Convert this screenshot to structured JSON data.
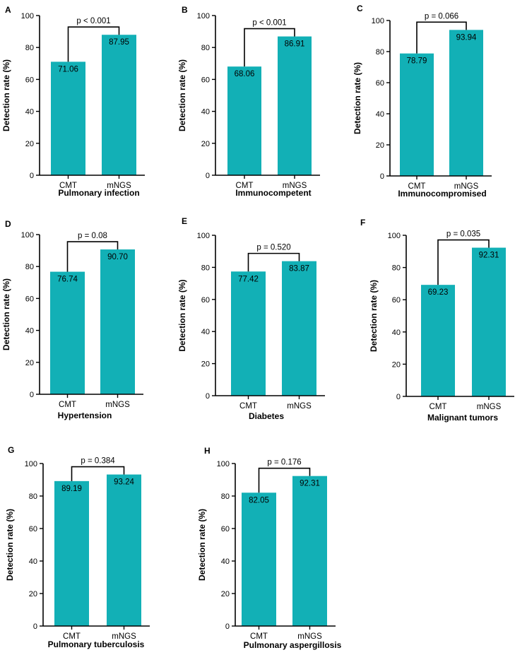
{
  "chart_data": [
    {
      "panel": "A",
      "type": "bar",
      "categories": [
        "CMT",
        "mNGS"
      ],
      "values": [
        71.06,
        87.95
      ],
      "value_labels": [
        "71.06",
        "87.95"
      ],
      "p_value": "p < 0.001",
      "xlabel": "Pulmonary infection",
      "ylabel": "Detection rate (%)",
      "ylim": [
        0,
        100
      ],
      "yticks": [
        "0",
        "20",
        "40",
        "60",
        "80",
        "100"
      ],
      "bar_color": "#12b0b6"
    },
    {
      "panel": "B",
      "type": "bar",
      "categories": [
        "CMT",
        "mNGS"
      ],
      "values": [
        68.06,
        86.91
      ],
      "value_labels": [
        "68.06",
        "86.91"
      ],
      "p_value": "p < 0.001",
      "xlabel": "Immunocompetent",
      "ylabel": "Detection rate (%)",
      "ylim": [
        0,
        100
      ],
      "yticks": [
        "0",
        "20",
        "40",
        "60",
        "80",
        "100"
      ],
      "bar_color": "#12b0b6"
    },
    {
      "panel": "C",
      "type": "bar",
      "categories": [
        "CMT",
        "mNGS"
      ],
      "values": [
        78.79,
        93.94
      ],
      "value_labels": [
        "78.79",
        "93.94"
      ],
      "p_value": "p = 0.066",
      "xlabel": "Immunocompromised",
      "ylabel": "Detection rate (%)",
      "ylim": [
        0,
        100
      ],
      "yticks": [
        "0",
        "20",
        "40",
        "60",
        "80",
        "100"
      ],
      "bar_color": "#12b0b6"
    },
    {
      "panel": "D",
      "type": "bar",
      "categories": [
        "CMT",
        "mNGS"
      ],
      "values": [
        76.74,
        90.7
      ],
      "value_labels": [
        "76.74",
        "90.70"
      ],
      "p_value": "p = 0.08",
      "xlabel": "Hypertension",
      "ylabel": "Detection rate (%)",
      "ylim": [
        0,
        100
      ],
      "yticks": [
        "0",
        "20",
        "40",
        "60",
        "80",
        "100"
      ],
      "bar_color": "#12b0b6"
    },
    {
      "panel": "E",
      "type": "bar",
      "categories": [
        "CMT",
        "mNGS"
      ],
      "values": [
        77.42,
        83.87
      ],
      "value_labels": [
        "77.42",
        "83.87"
      ],
      "p_value": "p = 0.520",
      "xlabel": "Diabetes",
      "ylabel": "Detection rate (%)",
      "ylim": [
        0,
        100
      ],
      "yticks": [
        "0",
        "20",
        "40",
        "60",
        "80",
        "100"
      ],
      "bar_color": "#12b0b6"
    },
    {
      "panel": "F",
      "type": "bar",
      "categories": [
        "CMT",
        "mNGS"
      ],
      "values": [
        69.23,
        92.31
      ],
      "value_labels": [
        "69.23",
        "92.31"
      ],
      "p_value": "p = 0.035",
      "xlabel": "Malignant tumors",
      "ylabel": "Detection rate (%)",
      "ylim": [
        0,
        100
      ],
      "yticks": [
        "0",
        "20",
        "40",
        "60",
        "80",
        "100"
      ],
      "bar_color": "#12b0b6"
    },
    {
      "panel": "G",
      "type": "bar",
      "categories": [
        "CMT",
        "mNGS"
      ],
      "values": [
        89.19,
        93.24
      ],
      "value_labels": [
        "89.19",
        "93.24"
      ],
      "p_value": "p = 0.384",
      "xlabel": "Pulmonary tuberculosis",
      "ylabel": "Detection rate (%)",
      "ylim": [
        0,
        100
      ],
      "yticks": [
        "0",
        "20",
        "40",
        "60",
        "80",
        "100"
      ],
      "bar_color": "#12b0b6"
    },
    {
      "panel": "H",
      "type": "bar",
      "categories": [
        "CMT",
        "mNGS"
      ],
      "values": [
        82.05,
        92.31
      ],
      "value_labels": [
        "82.05",
        "92.31"
      ],
      "p_value": "p = 0.176",
      "xlabel": "Pulmonary aspergillosis",
      "ylabel": "Detection rate (%)",
      "ylim": [
        0,
        100
      ],
      "yticks": [
        "0",
        "20",
        "40",
        "60",
        "80",
        "100"
      ],
      "bar_color": "#12b0b6"
    }
  ]
}
